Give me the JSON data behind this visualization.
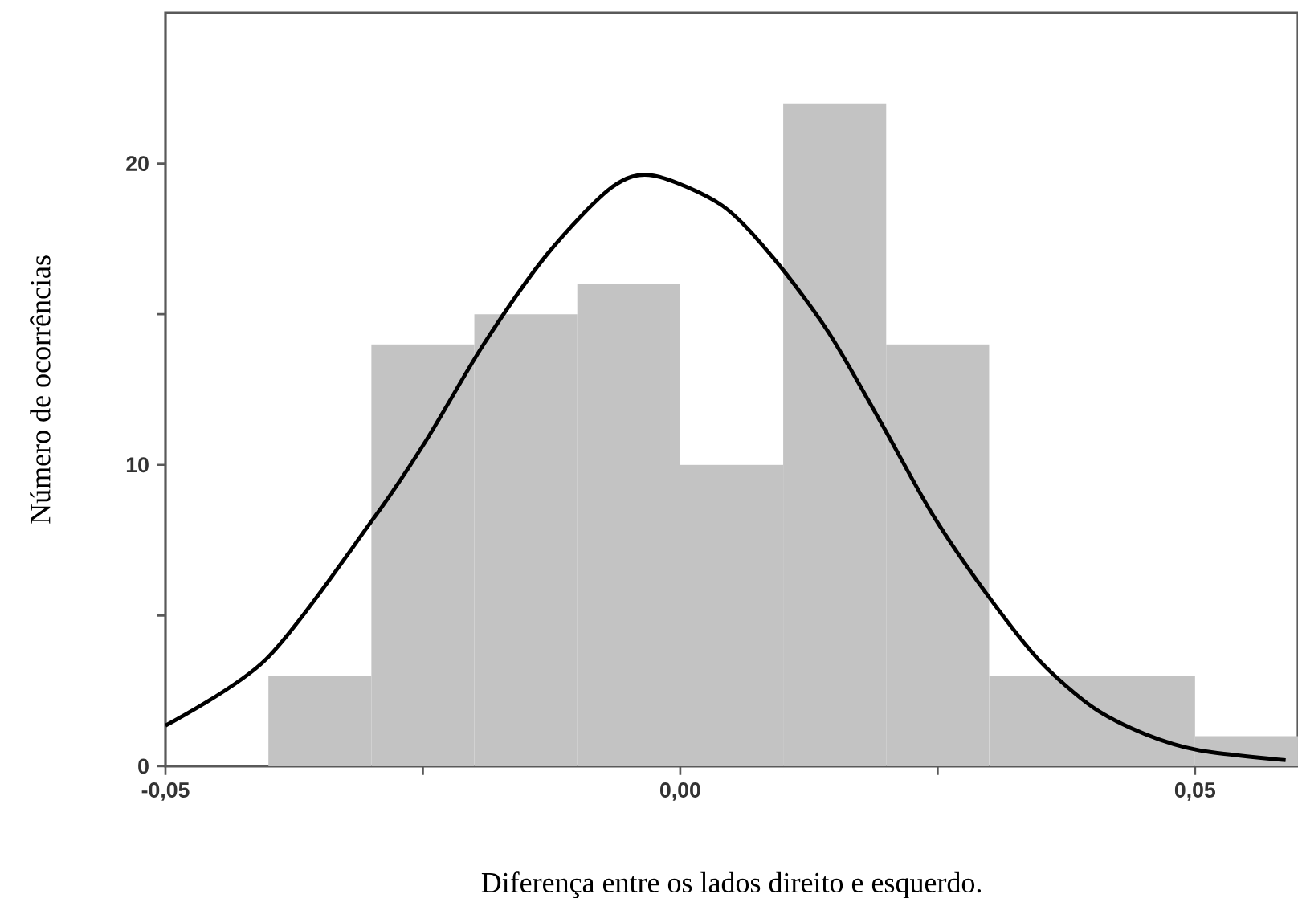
{
  "chart_data": {
    "type": "histogram",
    "xlabel": "Diferença entre os lados direito e esquerdo.",
    "ylabel": "Número de ocorrências",
    "bins": [
      -0.04,
      -0.03,
      -0.02,
      -0.01,
      0.0,
      0.01,
      0.02,
      0.03,
      0.04,
      0.05,
      0.06
    ],
    "values": [
      3,
      14,
      15,
      16,
      10,
      22,
      14,
      3,
      3,
      1
    ],
    "color": "#c3c3c3",
    "series": [
      {
        "type": "line",
        "color": "#000000",
        "x": [
          -0.05,
          -0.0402,
          -0.0299,
          -0.0247,
          -0.0191,
          -0.0129,
          -0.0067,
          -0.0026,
          0.0041,
          0.0092,
          0.0144,
          0.0195,
          0.0246,
          0.0298,
          0.0349,
          0.0401,
          0.0452,
          0.0504,
          0.0588
        ],
        "values": [
          1.35,
          3.56,
          8.17,
          10.8,
          14.0,
          17.0,
          19.2,
          19.6,
          18.6,
          16.8,
          14.4,
          11.4,
          8.3,
          5.7,
          3.5,
          1.95,
          1.06,
          0.53,
          0.2
        ]
      }
    ],
    "xlim": [
      -0.05,
      0.06
    ],
    "ylim": [
      0,
      25
    ],
    "xticks": [
      {
        "value": -0.05,
        "label": "-0,05"
      },
      {
        "value": -0.025,
        "label": null
      },
      {
        "value": 0,
        "label": "0,00"
      },
      {
        "value": 0.025,
        "label": null
      },
      {
        "value": 0.05,
        "label": "0,05"
      }
    ],
    "yticks": [
      0,
      {
        "value": 5,
        "label": null
      },
      10,
      {
        "value": 15,
        "label": null
      },
      20
    ]
  }
}
